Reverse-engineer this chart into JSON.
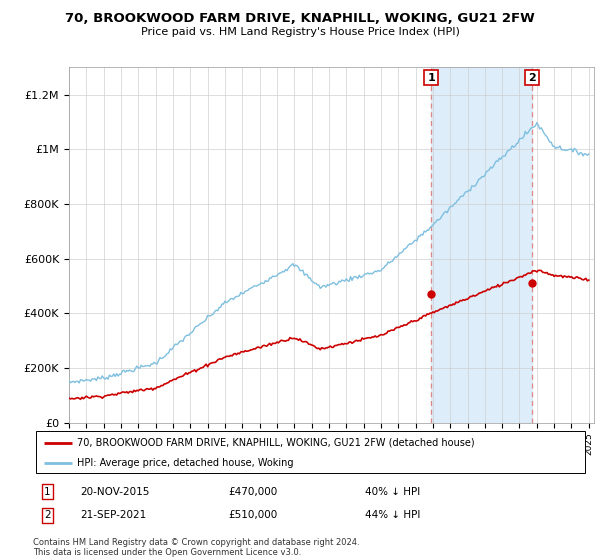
{
  "title": "70, BROOKWOOD FARM DRIVE, KNAPHILL, WOKING, GU21 2FW",
  "subtitle": "Price paid vs. HM Land Registry's House Price Index (HPI)",
  "legend_line1": "70, BROOKWOOD FARM DRIVE, KNAPHILL, WOKING, GU21 2FW (detached house)",
  "legend_line2": "HPI: Average price, detached house, Woking",
  "annotation1_label": "1",
  "annotation1_date": "20-NOV-2015",
  "annotation1_price": "£470,000",
  "annotation1_hpi": "40% ↓ HPI",
  "annotation2_label": "2",
  "annotation2_date": "21-SEP-2021",
  "annotation2_price": "£510,000",
  "annotation2_hpi": "44% ↓ HPI",
  "footer": "Contains HM Land Registry data © Crown copyright and database right 2024.\nThis data is licensed under the Open Government Licence v3.0.",
  "hpi_color": "#7fbfdf",
  "price_color": "#cc0000",
  "dashed_line_color": "#dd8888",
  "shade_color": "#d8eaf8",
  "ylim": [
    0,
    1300000
  ],
  "yticks": [
    0,
    200000,
    400000,
    600000,
    800000,
    1000000,
    1200000
  ],
  "ytick_labels": [
    "£0",
    "£200K",
    "£400K",
    "£600K",
    "£800K",
    "£1M",
    "£1.2M"
  ],
  "sale1_year": 2015.9,
  "sale1_value": 470000,
  "sale2_year": 2021.73,
  "sale2_value": 510000
}
